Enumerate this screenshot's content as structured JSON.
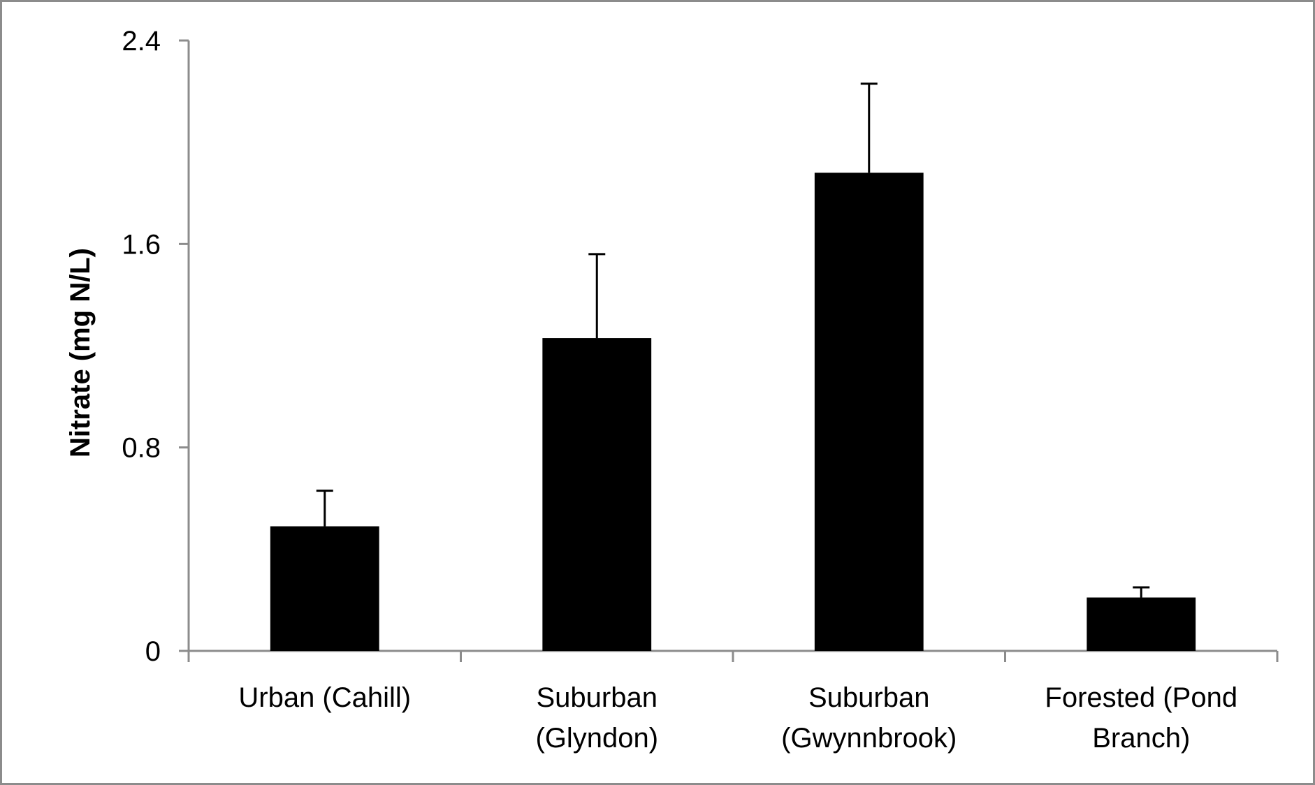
{
  "chart_data": {
    "type": "bar",
    "title": "",
    "xlabel": "",
    "ylabel": "Nitrate (mg N/L)",
    "ylim": [
      0,
      2.4
    ],
    "yticks": [
      "0",
      "0.8",
      "1.6",
      "2.4"
    ],
    "ytick_values": [
      0,
      0.8,
      1.6,
      2.4
    ],
    "categories": [
      [
        "Urban (Cahill)"
      ],
      [
        "Suburban",
        "(Glyndon)"
      ],
      [
        "Suburban",
        "(Gwynnbrook)"
      ],
      [
        "Forested (Pond",
        "Branch)"
      ]
    ],
    "values": [
      0.49,
      1.23,
      1.88,
      0.21
    ],
    "error_plus": [
      0.14,
      0.33,
      0.35,
      0.04
    ],
    "grid": false,
    "legend": "none",
    "colors": {
      "bar": "#000000",
      "axis": "#8c8c8c",
      "frame": "#8c8c8c",
      "error_bar": "#000000"
    }
  }
}
